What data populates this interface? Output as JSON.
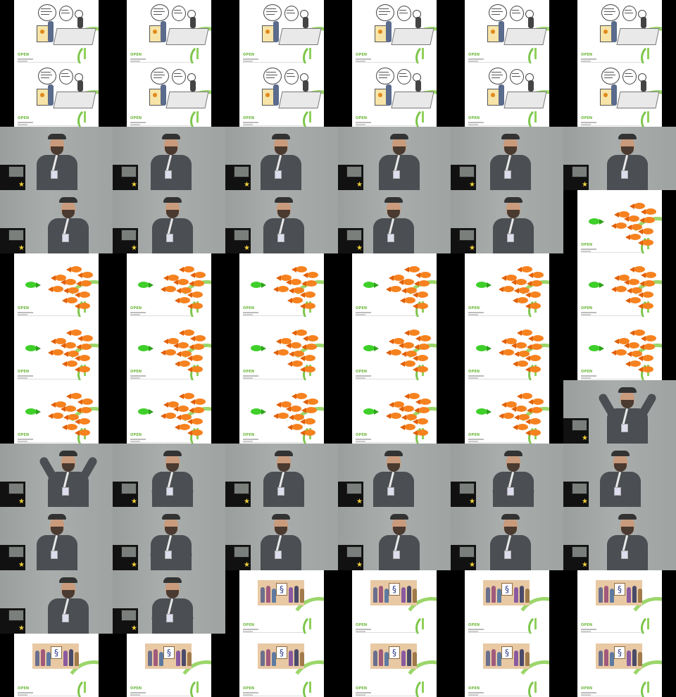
{
  "image": {
    "layout": "contact sheet of video thumbnails",
    "columns": 6,
    "rows": 11,
    "tiles": [
      "cartoon",
      "cartoon",
      "cartoon",
      "cartoon",
      "cartoon",
      "cartoon",
      "cartoon",
      "cartoon",
      "cartoon",
      "cartoon",
      "cartoon",
      "cartoon",
      "speaker",
      "speaker",
      "speaker",
      "speaker",
      "speaker",
      "speaker",
      "speaker",
      "speaker",
      "speaker",
      "speaker",
      "speaker",
      "fish",
      "fish",
      "fish",
      "fish",
      "fish",
      "fish",
      "fish",
      "fish",
      "fish",
      "fish",
      "fish",
      "fish",
      "fish",
      "fish",
      "fish",
      "fish",
      "fish",
      "fish",
      "speaker-arms-up",
      "speaker-arms-up",
      "speaker-gesture",
      "speaker",
      "speaker",
      "speaker-gesture",
      "speaker",
      "speaker",
      "speaker-gesture",
      "speaker",
      "speaker",
      "speaker",
      "speaker",
      "speaker",
      "speaker-gesture",
      "group",
      "group",
      "group",
      "group",
      "group",
      "group",
      "group",
      "group",
      "group",
      "group"
    ],
    "slide_brand": "OPEN",
    "colors": {
      "brand_green": "#6cb73a",
      "arc_green": "#9bd66a",
      "fish_orange": "#f6821f",
      "fish_green": "#3fcf2a",
      "wall_gray": "#a5a9a8",
      "shirt_gray": "#4b4e52"
    }
  }
}
